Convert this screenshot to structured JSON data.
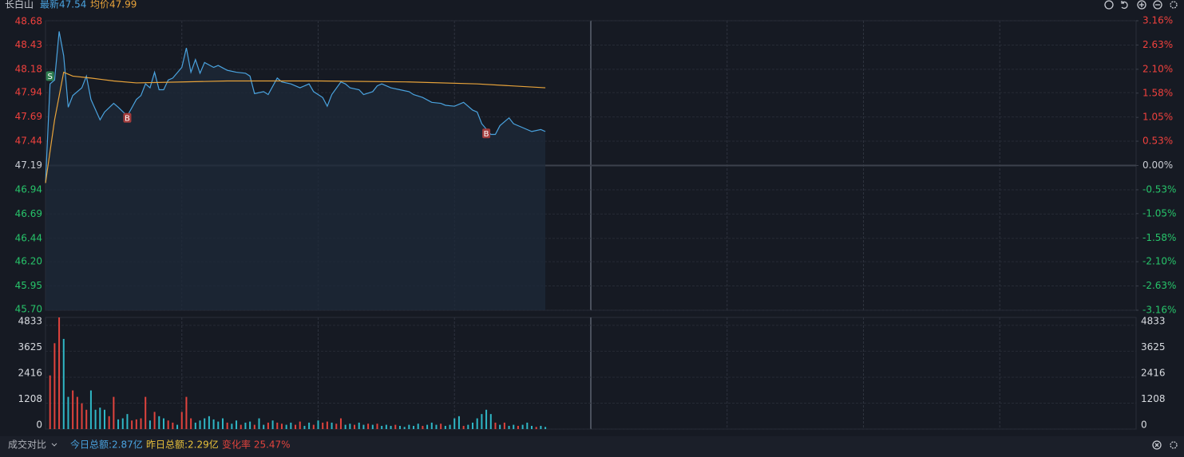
{
  "header": {
    "name": "长白山",
    "latest": "最新47.54",
    "avg": "均价47.99"
  },
  "chart_data": [
    {
      "type": "line",
      "xlim": [
        0,
        240
      ],
      "xticks": [
        30,
        60,
        90,
        120,
        150,
        180,
        210
      ],
      "ylim": [
        45.7,
        48.68
      ],
      "yticks": [
        48.68,
        48.43,
        48.18,
        47.94,
        47.69,
        47.44,
        47.19,
        46.94,
        46.69,
        46.44,
        {
          "value": 46.2,
          "label": "46.20"
        },
        45.95,
        {
          "value": 45.7,
          "label": "45.70"
        }
      ],
      "y2lim": [
        -3.16,
        3.16
      ],
      "y2ticks": [
        {
          "value": 3.16,
          "label": "3.16%"
        },
        {
          "value": 2.63,
          "label": "2.63%"
        },
        {
          "value": 2.1,
          "label": "2.10%"
        },
        {
          "value": 1.58,
          "label": "1.58%"
        },
        {
          "value": 1.05,
          "label": "1.05%"
        },
        {
          "value": 0.53,
          "label": "0.53%"
        },
        {
          "value": 0,
          "label": "0.00%"
        },
        {
          "value": -0.53,
          "label": "-0.53%"
        },
        {
          "value": -1.05,
          "label": "-1.05%"
        },
        {
          "value": -1.58,
          "label": "-1.58%"
        },
        {
          "value": -2.1,
          "label": "-2.10%"
        },
        {
          "value": -2.63,
          "label": "-2.63%"
        },
        {
          "value": -3.16,
          "label": "-3.16%"
        }
      ],
      "series": [
        {
          "color": "#4aa3df",
          "fill": true,
          "x": [
            0,
            1,
            2,
            3,
            4,
            5,
            6,
            8,
            9,
            10,
            12,
            13,
            15,
            16,
            18,
            20,
            21,
            22,
            23,
            24,
            25,
            26,
            27,
            28,
            30,
            31,
            32,
            33,
            34,
            35,
            37,
            38,
            40,
            42,
            44,
            45,
            46,
            48,
            49,
            51,
            52,
            54,
            56,
            58,
            59,
            61,
            62,
            63,
            65,
            66,
            67,
            69,
            70,
            72,
            73,
            74,
            76,
            78,
            80,
            81,
            83,
            85,
            87,
            88,
            90,
            92,
            94,
            95,
            96,
            98,
            99,
            100,
            102,
            103,
            105,
            107,
            109,
            110
          ],
          "values": [
            47.01,
            48.03,
            48.07,
            48.57,
            48.32,
            47.79,
            47.91,
            47.99,
            48.11,
            47.87,
            47.66,
            47.74,
            47.83,
            47.79,
            47.7,
            47.87,
            47.91,
            48.03,
            47.99,
            48.15,
            47.97,
            47.97,
            48.07,
            48.09,
            48.2,
            48.4,
            48.15,
            48.28,
            48.14,
            48.25,
            48.2,
            48.22,
            48.17,
            48.15,
            48.14,
            48.11,
            47.93,
            47.95,
            47.92,
            48.09,
            48.05,
            48.03,
            47.99,
            48.03,
            47.95,
            47.89,
            47.8,
            47.92,
            48.05,
            48.03,
            47.99,
            47.97,
            47.92,
            47.95,
            48.01,
            48.03,
            47.99,
            47.97,
            47.95,
            47.92,
            47.89,
            47.84,
            47.83,
            47.81,
            47.8,
            47.84,
            47.76,
            47.74,
            47.62,
            47.51,
            47.51,
            47.6,
            47.68,
            47.62,
            47.58,
            47.54,
            47.56,
            47.54
          ]
        },
        {
          "color": "#e8a33a",
          "fill": false,
          "x": [
            0,
            2,
            4,
            6,
            10,
            15,
            20,
            30,
            40,
            60,
            80,
            95,
            110
          ],
          "values": [
            47.01,
            47.66,
            48.15,
            48.11,
            48.09,
            48.06,
            48.04,
            48.05,
            48.06,
            48.06,
            48.05,
            48.03,
            47.99
          ]
        }
      ],
      "annotations": [
        {
          "text": "S",
          "x": 1,
          "y": 48.11,
          "color": "#2e7d4f"
        },
        {
          "text": "B",
          "x": 18,
          "y": 47.68,
          "color": "#a33c3c"
        },
        {
          "text": "B",
          "x": 97,
          "y": 47.52,
          "color": "#a33c3c"
        }
      ]
    },
    {
      "type": "bar",
      "xlim": [
        0,
        240
      ],
      "xticks": [
        30,
        60,
        90,
        120,
        150,
        180,
        210
      ],
      "ylim": [
        0,
        5200
      ],
      "yticks": [
        0,
        1208,
        2416,
        3625,
        4833
      ],
      "series": [
        {
          "color": "#e0433d",
          "x": [
            1,
            2,
            3,
            6,
            7,
            8,
            9,
            14,
            15,
            19,
            20,
            21,
            22,
            24,
            27,
            28,
            30,
            31,
            32,
            40,
            43,
            46,
            49,
            51,
            52,
            55,
            56,
            59,
            61,
            62,
            64,
            65,
            68,
            71,
            73,
            77,
            83,
            87,
            92,
            99,
            101,
            104,
            108
          ],
          "values": [
            2500,
            4000,
            5200,
            1800,
            1500,
            1200,
            900,
            600,
            1500,
            400,
            450,
            500,
            1500,
            800,
            400,
            300,
            800,
            1500,
            500,
            300,
            200,
            200,
            300,
            300,
            250,
            200,
            350,
            200,
            300,
            350,
            250,
            500,
            200,
            250,
            250,
            200,
            150,
            250,
            150,
            300,
            300,
            150,
            100
          ]
        },
        {
          "color": "#2fb7c6",
          "x": [
            4,
            5,
            10,
            11,
            12,
            13,
            16,
            17,
            18,
            23,
            25,
            26,
            29,
            33,
            34,
            35,
            36,
            37,
            38,
            39,
            41,
            42,
            44,
            45,
            47,
            48,
            50,
            53,
            54,
            57,
            58,
            60,
            63,
            66,
            67,
            69,
            70,
            72,
            74,
            75,
            76,
            78,
            79,
            80,
            81,
            82,
            84,
            85,
            86,
            88,
            89,
            90,
            91,
            93,
            94,
            95,
            96,
            97,
            98,
            100,
            102,
            103,
            105,
            106,
            107,
            109,
            110
          ],
          "values": [
            4200,
            1500,
            1800,
            900,
            1000,
            900,
            450,
            500,
            700,
            400,
            600,
            500,
            200,
            300,
            400,
            500,
            600,
            450,
            350,
            500,
            250,
            400,
            300,
            350,
            500,
            200,
            400,
            200,
            300,
            150,
            300,
            400,
            300,
            200,
            250,
            300,
            200,
            200,
            150,
            200,
            150,
            150,
            100,
            200,
            150,
            250,
            200,
            300,
            200,
            150,
            200,
            500,
            600,
            200,
            300,
            500,
            700,
            900,
            700,
            200,
            150,
            200,
            200,
            300,
            150,
            150,
            100
          ]
        }
      ]
    }
  ],
  "footer": {
    "label": "成交对比",
    "today": "今日总额:2.87亿",
    "yesterday": "昨日总额:2.29亿",
    "change": "变化率 25.47%"
  }
}
